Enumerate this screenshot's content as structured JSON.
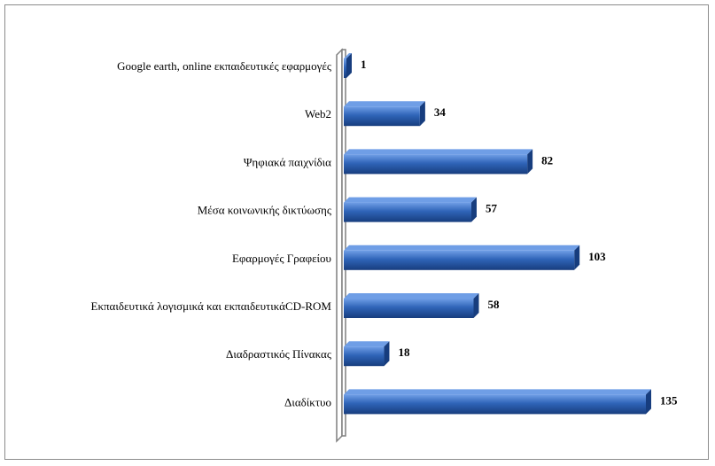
{
  "chart_data": {
    "type": "bar",
    "orientation": "horizontal",
    "categories": [
      "Google earth, online εκπαιδευτικές εφαρμογές",
      "Web2",
      "Ψηφιακά παιχνίδια",
      "Μέσα κοινωνικής δικτύωσης",
      "Εφαρμογές Γραφείου",
      "Εκπαιδευτικά λογισμικά και εκπαιδευτικάCD-ROM",
      "Διαδραστικός Πίνακας",
      "Διαδίκτυο"
    ],
    "values": [
      1,
      34,
      82,
      57,
      103,
      58,
      18,
      135
    ],
    "value_labels": [
      "1",
      "34",
      "82",
      "57",
      "103",
      "58",
      "18",
      "135"
    ],
    "title": "",
    "xlabel": "",
    "ylabel": "",
    "xlim": [
      0,
      135
    ],
    "grid": false,
    "legend": "none",
    "bar_style": "3d",
    "colors": {
      "bar_face": "#2f64b8",
      "bar_light": "#6f9ee6",
      "bar_dark": "#173d7e",
      "axis_wall": "#ffffff",
      "axis_wall_edge": "#7f7f7f",
      "frame": "#8c8c8c"
    }
  }
}
